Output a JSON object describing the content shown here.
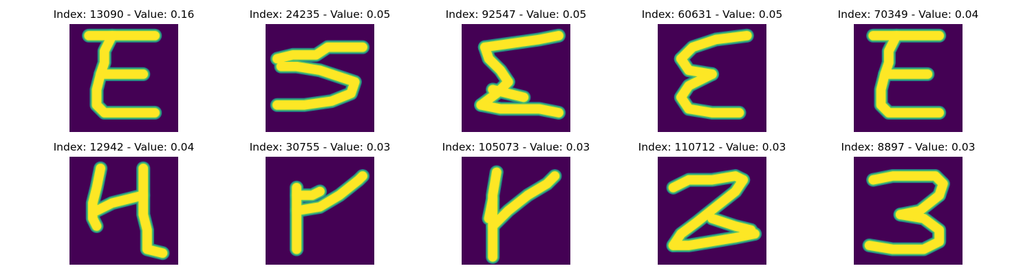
{
  "colors": {
    "background": "#440154",
    "stroke_edge": "#21918c",
    "stroke_mid": "#5ec962",
    "stroke_core": "#fde725"
  },
  "panels": [
    {
      "index_label": "Index: 13090 - Value: 0.16",
      "glyph": "handwritten-E"
    },
    {
      "index_label": "Index: 24235 - Value: 0.05",
      "glyph": "handwritten-sideways-3"
    },
    {
      "index_label": "Index: 92547 - Value: 0.05",
      "glyph": "handwritten-sigma"
    },
    {
      "index_label": "Index: 60631 - Value: 0.05",
      "glyph": "handwritten-epsilon"
    },
    {
      "index_label": "Index: 70349 - Value: 0.04",
      "glyph": "handwritten-E"
    },
    {
      "index_label": "Index: 12942 - Value: 0.04",
      "glyph": "handwritten-h"
    },
    {
      "index_label": "Index: 30755 - Value: 0.03",
      "glyph": "handwritten-r"
    },
    {
      "index_label": "Index: 105073 - Value: 0.03",
      "glyph": "handwritten-y"
    },
    {
      "index_label": "Index: 110712 - Value: 0.03",
      "glyph": "handwritten-2"
    },
    {
      "index_label": "Index: 8897 - Value: 0.03",
      "glyph": "handwritten-3"
    }
  ]
}
